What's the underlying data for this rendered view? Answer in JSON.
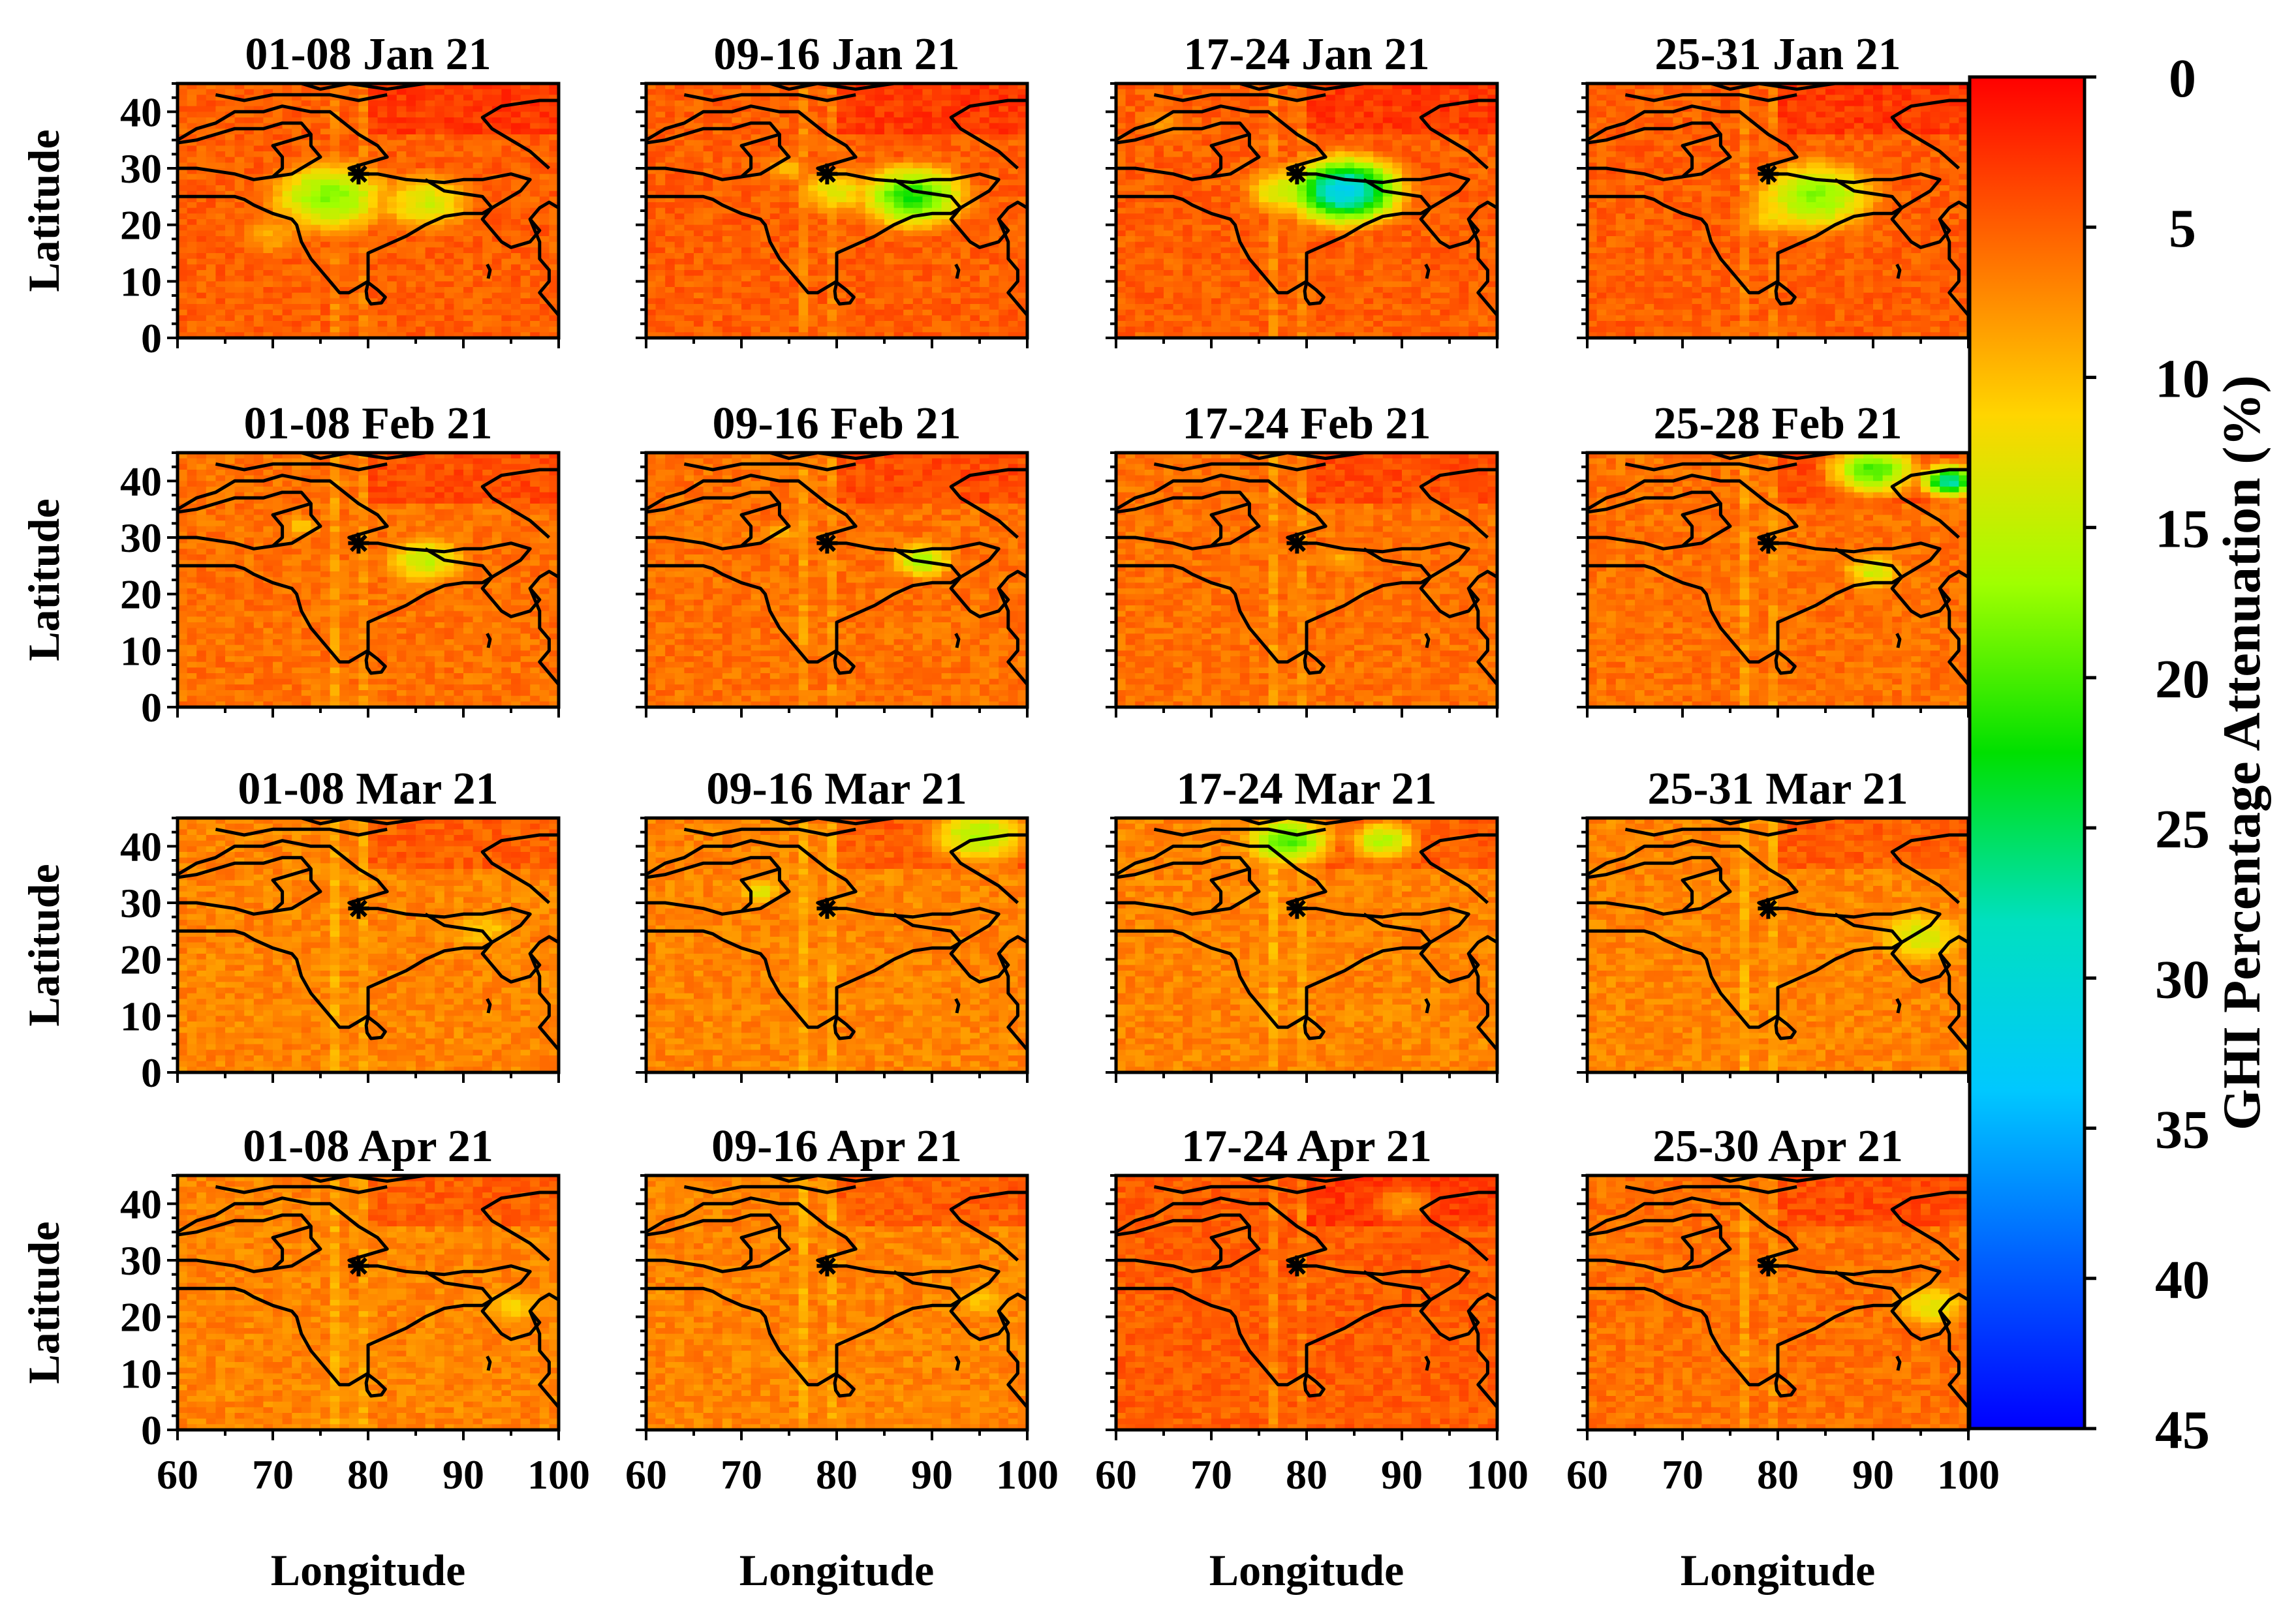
{
  "chart_data": {
    "type": "heatmap",
    "layout": "4x4 small multiples",
    "xlabel": "Longitude",
    "ylabel": "Latitude",
    "xlim": [
      60,
      100
    ],
    "ylim": [
      0,
      45
    ],
    "xticks": [
      60,
      70,
      80,
      90,
      100
    ],
    "yticks": [
      0,
      10,
      20,
      30,
      40
    ],
    "colorbar": {
      "label": "GHI Percentage Attenuation (%)",
      "range": [
        0,
        45
      ],
      "ticks": [
        0,
        5,
        10,
        15,
        20,
        25,
        30,
        35,
        40,
        45
      ],
      "colors": [
        "#ff0000",
        "#ff6a00",
        "#ffd500",
        "#a0ff00",
        "#00e000",
        "#00e0c0",
        "#00c8ff",
        "#0060ff",
        "#0000ff"
      ]
    },
    "panels": [
      {
        "title": "01-08 Jan 21",
        "background": 5,
        "features": [
          {
            "lon": 76,
            "lat": 25,
            "r": 7,
            "v": 18
          },
          {
            "lon": 86,
            "lat": 24,
            "r": 6,
            "v": 14
          },
          {
            "lon": 70,
            "lat": 18,
            "r": 5,
            "v": 9
          }
        ]
      },
      {
        "title": "09-16 Jan 21",
        "background": 5,
        "features": [
          {
            "lon": 88,
            "lat": 25,
            "r": 6,
            "v": 22
          },
          {
            "lon": 80,
            "lat": 26,
            "r": 5,
            "v": 13
          },
          {
            "lon": 75,
            "lat": 30,
            "r": 3,
            "v": 10
          }
        ]
      },
      {
        "title": "17-24 Jan 21",
        "background": 5,
        "features": [
          {
            "lon": 84,
            "lat": 26,
            "r": 6,
            "v": 32
          },
          {
            "lon": 78,
            "lat": 26,
            "r": 5,
            "v": 15
          },
          {
            "lon": 65,
            "lat": 38,
            "r": 4,
            "v": 8
          }
        ]
      },
      {
        "title": "25-31 Jan 21",
        "background": 5,
        "features": [
          {
            "lon": 84,
            "lat": 25,
            "r": 7,
            "v": 18
          },
          {
            "lon": 80,
            "lat": 22,
            "r": 5,
            "v": 12
          }
        ]
      },
      {
        "title": "01-08 Feb 21",
        "background": 6,
        "features": [
          {
            "lon": 86,
            "lat": 26,
            "r": 5,
            "v": 15
          },
          {
            "lon": 73,
            "lat": 32,
            "r": 3,
            "v": 10
          }
        ]
      },
      {
        "title": "09-16 Feb 21",
        "background": 6,
        "features": [
          {
            "lon": 89,
            "lat": 26,
            "r": 4,
            "v": 16
          },
          {
            "lon": 74,
            "lat": 31,
            "r": 3,
            "v": 10
          }
        ]
      },
      {
        "title": "17-24 Feb 21",
        "background": 6,
        "features": [
          {
            "lon": 84,
            "lat": 26,
            "r": 4,
            "v": 9
          }
        ]
      },
      {
        "title": "25-28 Feb 21",
        "background": 6,
        "features": [
          {
            "lon": 90,
            "lat": 42,
            "r": 5,
            "v": 20
          },
          {
            "lon": 98,
            "lat": 40,
            "r": 3,
            "v": 28
          },
          {
            "lon": 90,
            "lat": 24,
            "r": 4,
            "v": 14
          }
        ]
      },
      {
        "title": "01-08 Mar 21",
        "background": 7,
        "features": [
          {
            "lon": 92,
            "lat": 25,
            "r": 5,
            "v": 11
          }
        ]
      },
      {
        "title": "09-16 Mar 21",
        "background": 7,
        "features": [
          {
            "lon": 95,
            "lat": 42,
            "r": 6,
            "v": 16
          },
          {
            "lon": 72,
            "lat": 32,
            "r": 3,
            "v": 13
          }
        ]
      },
      {
        "title": "17-24 Mar 21",
        "background": 7,
        "features": [
          {
            "lon": 78,
            "lat": 41,
            "r": 5,
            "v": 20
          },
          {
            "lon": 88,
            "lat": 41,
            "r": 4,
            "v": 16
          }
        ]
      },
      {
        "title": "25-31 Mar 21",
        "background": 7,
        "features": [
          {
            "lon": 95,
            "lat": 24,
            "r": 6,
            "v": 14
          }
        ]
      },
      {
        "title": "01-08 Apr 21",
        "background": 7,
        "features": [
          {
            "lon": 95,
            "lat": 22,
            "r": 5,
            "v": 11
          }
        ]
      },
      {
        "title": "09-16 Apr 21",
        "background": 7,
        "features": [
          {
            "lon": 95,
            "lat": 23,
            "r": 5,
            "v": 10
          }
        ]
      },
      {
        "title": "17-24 Apr 21",
        "background": 5,
        "features": [
          {
            "lon": 90,
            "lat": 40,
            "r": 4,
            "v": 8
          }
        ]
      },
      {
        "title": "25-30 Apr 21",
        "background": 6,
        "features": [
          {
            "lon": 96,
            "lat": 22,
            "r": 5,
            "v": 13
          }
        ]
      }
    ],
    "marker": {
      "lon": 79,
      "lat": 29,
      "symbol": "star"
    }
  }
}
